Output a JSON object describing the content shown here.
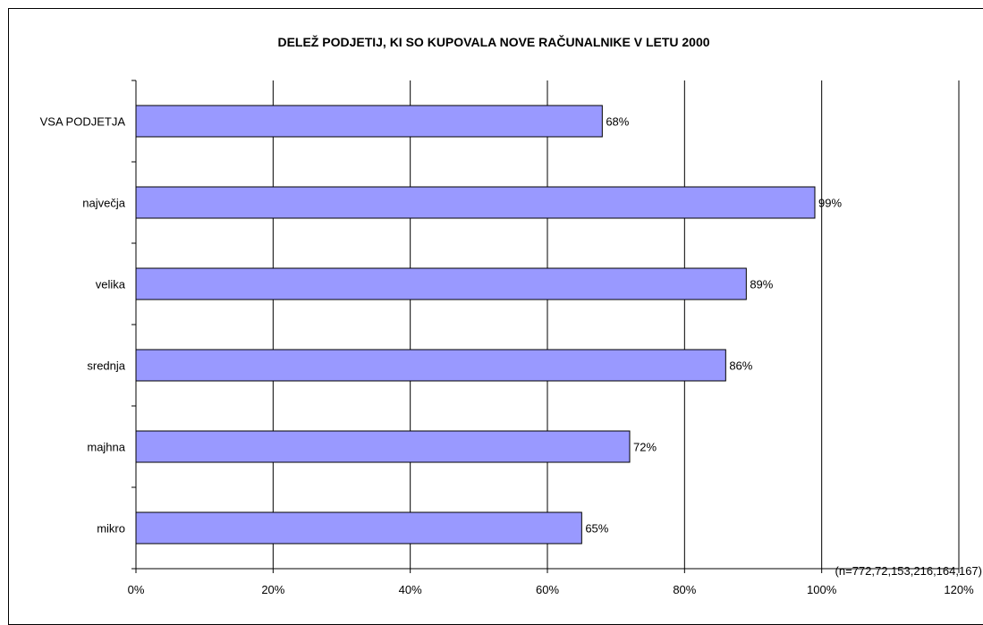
{
  "chart_data": {
    "type": "bar",
    "orientation": "horizontal",
    "title": "DELEŽ PODJETIJ, KI SO KUPOVALA NOVE RAČUNALNIKE V LETU 2000",
    "categories": [
      "VSA PODJETJA",
      "največja",
      "velika",
      "srednja",
      "majhna",
      "mikro"
    ],
    "values": [
      68,
      99,
      89,
      86,
      72,
      65
    ],
    "value_labels": [
      "68%",
      "99%",
      "89%",
      "86%",
      "72%",
      "65%"
    ],
    "xlim": [
      0,
      120
    ],
    "x_ticks": [
      0,
      20,
      40,
      60,
      80,
      100,
      120
    ],
    "x_tick_labels": [
      "0%",
      "20%",
      "40%",
      "60%",
      "80%",
      "100%",
      "120%"
    ],
    "grid": "vertical",
    "annotation": "(n=772,72,153,216,164,167)",
    "colors": {
      "bar": "#9999ff",
      "bar_border": "#000000",
      "grid": "#000000"
    }
  }
}
